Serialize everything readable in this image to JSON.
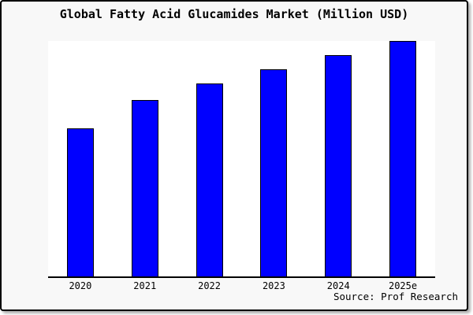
{
  "colors": {
    "bar_fill": "#0000ff",
    "bar_border": "#000000",
    "plot_background": "#ffffff",
    "frame_background": "#f8f8f8",
    "text": "#000000"
  },
  "chart_data": {
    "type": "bar",
    "title": "Global Fatty Acid Glucamides Market (Million USD)",
    "categories": [
      "2020",
      "2021",
      "2022",
      "2023",
      "2024",
      "2025e"
    ],
    "values": [
      63,
      75,
      82,
      88,
      94,
      100
    ],
    "values_note": "no y-axis labels or gridlines shown; values estimated as percent of tallest bar (2025e = 100)",
    "xlabel": "",
    "ylabel": "",
    "ylim": [
      0,
      100
    ],
    "grid": false,
    "legend": null,
    "source": "Source: Prof Research"
  }
}
